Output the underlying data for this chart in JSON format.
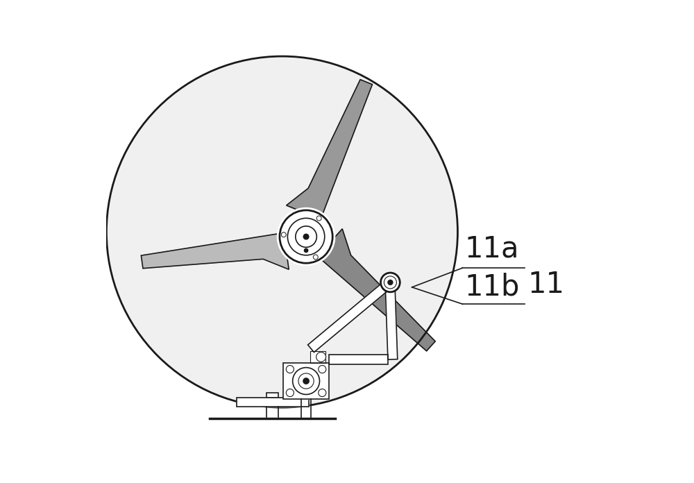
{
  "bg_color": "#ffffff",
  "line_color": "#1a1a1a",
  "fill_light": "#e8e8e8",
  "fill_blade": "#c8c8c8",
  "label_11": "11",
  "label_11a": "11a",
  "label_11b": "11b",
  "label_fontsize": 30,
  "fig_width": 10.0,
  "fig_height": 6.96,
  "dpi": 100
}
